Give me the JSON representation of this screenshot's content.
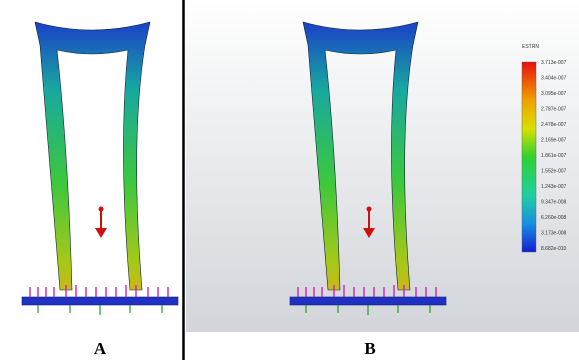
{
  "panels": [
    {
      "label": "A"
    },
    {
      "label": "B"
    }
  ],
  "legend": {
    "title": "ESTRN",
    "labels": [
      "3.713e-007",
      "3.404e-007",
      "3.095e-007",
      "2.787e-007",
      "2.478e-007",
      "2.169e-007",
      "1.861e-007",
      "1.552e-007",
      "1.243e-007",
      "9.347e-008",
      "6.260e-008",
      "3.173e-008",
      "8.682e-010"
    ]
  }
}
